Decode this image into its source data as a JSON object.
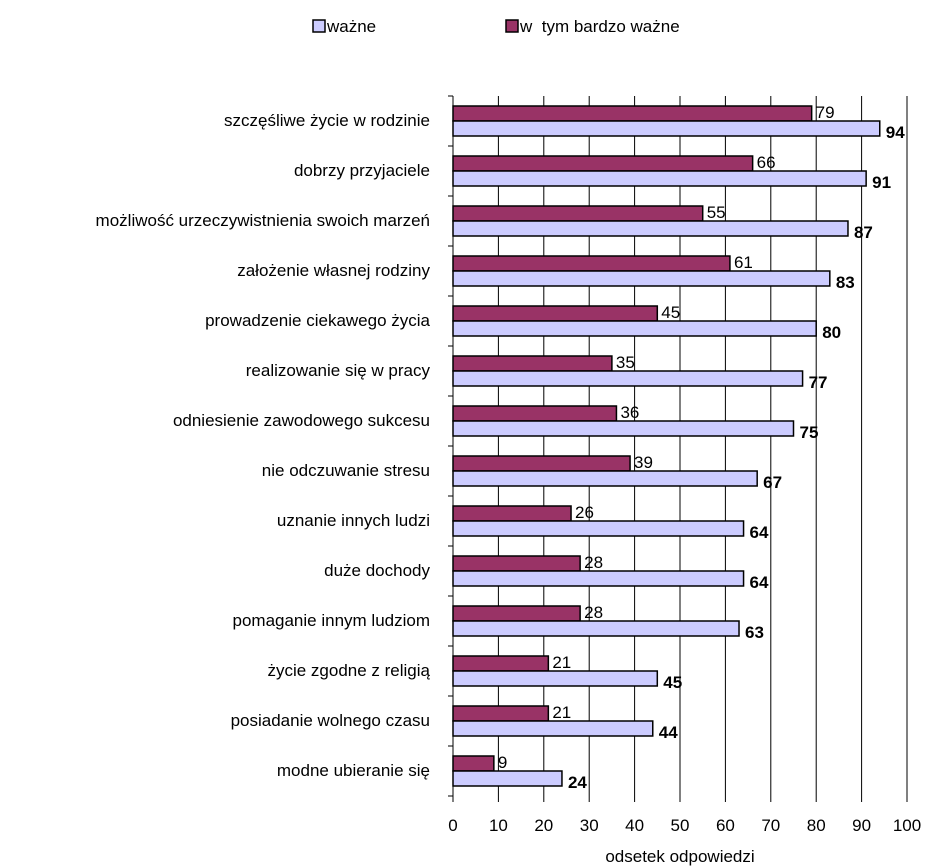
{
  "chart_data": {
    "type": "bar",
    "orientation": "horizontal",
    "categories": [
      "szczęśliwe życie w rodzinie",
      "dobrzy przyjaciele",
      "możliwość urzeczywistnienia swoich marzeń",
      "założenie własnej rodziny",
      "prowadzenie ciekawego życia",
      "realizowanie się w pracy",
      "odniesienie zawodowego sukcesu",
      "nie odczuwanie stresu",
      "uznanie innych ludzi",
      "duże dochody",
      "pomaganie innym ludziom",
      "życie zgodne z religią",
      "posiadanie wolnego czasu",
      "modne ubieranie się"
    ],
    "series": [
      {
        "name": "ważne",
        "color": "#ccccff",
        "values": [
          94,
          91,
          87,
          83,
          80,
          77,
          75,
          67,
          64,
          64,
          63,
          45,
          44,
          24
        ]
      },
      {
        "name": "w  tym bardzo ważne",
        "color": "#993366",
        "values": [
          79,
          66,
          55,
          61,
          45,
          35,
          36,
          39,
          26,
          28,
          28,
          21,
          21,
          9
        ]
      }
    ],
    "xlabel": "odsetek odpowiedzi",
    "ylabel": "",
    "xlim": [
      0,
      100
    ],
    "xticks": [
      "0",
      "10",
      "20",
      "30",
      "40",
      "50",
      "60",
      "70",
      "80",
      "90",
      "100"
    ],
    "grid": "vertical",
    "legend_position": "top"
  }
}
